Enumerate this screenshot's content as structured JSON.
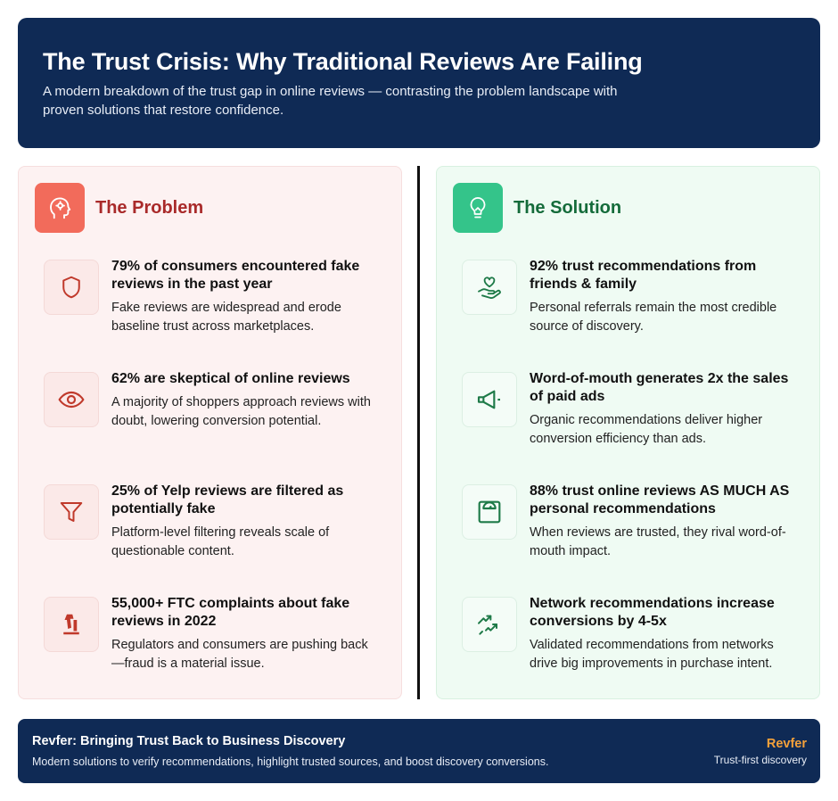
{
  "header": {
    "title": "The Trust Crisis: Why Traditional Reviews Are Failing",
    "subtitle": "A modern breakdown of the trust gap in online reviews — contrasting the problem landscape with proven solutions that restore confidence."
  },
  "problem": {
    "title": "The Problem",
    "icon": "head-profile-icon",
    "accent": "#a92a2a",
    "items": [
      {
        "icon": "shield-icon",
        "title": "79% of consumers encountered fake reviews in the past year",
        "desc": "Fake reviews are widespread and erode baseline trust across marketplaces."
      },
      {
        "icon": "eye-icon",
        "title": "62% are skeptical of online reviews",
        "desc": "A majority of shoppers approach reviews with doubt, lowering conversion potential."
      },
      {
        "icon": "funnel-icon",
        "title": "25% of Yelp reviews are filtered as potentially fake",
        "desc": "Platform-level filtering reveals scale of questionable content."
      },
      {
        "icon": "gavel-icon",
        "title": "55,000+ FTC complaints about fake reviews in 2022",
        "desc": "Regulators and consumers are pushing back—fraud is a material issue."
      }
    ]
  },
  "solution": {
    "title": "The Solution",
    "icon": "lightbulb-icon",
    "accent": "#146b3a",
    "items": [
      {
        "icon": "heart-hand-icon",
        "title": "92% trust recommendations from friends & family",
        "desc": "Personal referrals remain the most credible source of discovery."
      },
      {
        "icon": "megaphone-icon",
        "title": "Word-of-mouth generates 2x the sales of paid ads",
        "desc": "Organic recommendations deliver higher conversion efficiency than ads."
      },
      {
        "icon": "scale-icon",
        "title": "88% trust online reviews AS MUCH AS personal recommendations",
        "desc": "When reviews are trusted, they rival word-of-mouth impact."
      },
      {
        "icon": "trend-arrows-icon",
        "title": "Network recommendations increase conversions by 4-5x",
        "desc": "Validated recommendations from networks drive big improvements in purchase intent."
      }
    ]
  },
  "footer": {
    "title": "Revfer: Bringing Trust Back to Business Discovery",
    "desc": "Modern solutions to verify recommendations, highlight trusted sources, and boost discovery conversions.",
    "brand": "Revfer",
    "tagline": "Trust-first discovery"
  }
}
